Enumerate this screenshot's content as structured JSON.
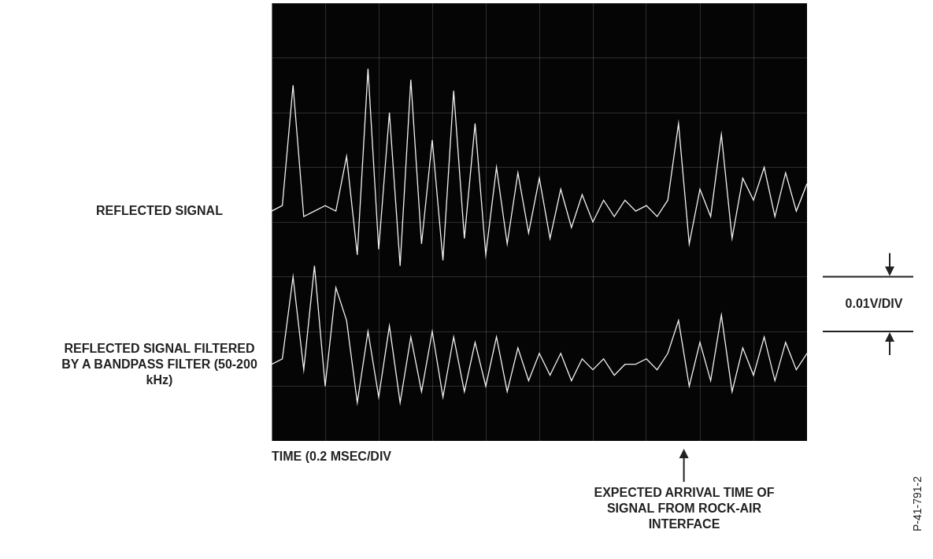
{
  "chart_data": {
    "type": "line",
    "x_label": "TIME (0.2 MSEC/DIV",
    "y_label": "0.01V/DIV",
    "x": [
      0,
      0.04,
      0.08,
      0.12,
      0.16,
      0.2,
      0.24,
      0.28,
      0.32,
      0.36,
      0.4,
      0.44,
      0.48,
      0.52,
      0.56,
      0.6,
      0.64,
      0.68,
      0.72,
      0.76,
      0.8,
      0.84,
      0.88,
      0.92,
      0.96,
      1.0,
      1.04,
      1.08,
      1.12,
      1.16,
      1.2,
      1.24,
      1.28,
      1.32,
      1.36,
      1.4,
      1.44,
      1.48,
      1.52,
      1.56,
      1.6,
      1.64,
      1.68,
      1.72,
      1.76,
      1.8,
      1.84,
      1.88,
      1.92,
      1.96,
      2.0
    ],
    "series": [
      {
        "name": "REFLECTED SIGNAL",
        "color": "#f2f2f2",
        "values": [
          0.002,
          0.003,
          0.025,
          0.001,
          0.002,
          0.003,
          0.002,
          0.012,
          -0.006,
          0.028,
          -0.005,
          0.02,
          -0.008,
          0.026,
          -0.004,
          0.015,
          -0.007,
          0.024,
          -0.003,
          0.018,
          -0.006,
          0.01,
          -0.004,
          0.009,
          -0.002,
          0.008,
          -0.003,
          0.006,
          -0.001,
          0.005,
          0.0,
          0.004,
          0.001,
          0.004,
          0.002,
          0.003,
          0.001,
          0.004,
          0.018,
          -0.004,
          0.006,
          0.001,
          0.016,
          -0.003,
          0.008,
          0.004,
          0.01,
          0.001,
          0.009,
          0.002,
          0.007
        ]
      },
      {
        "name": "REFLECTED SIGNAL FILTERED BY A BANDPASS FILTER (50-200 kHz)",
        "color": "#f2f2f2",
        "values": [
          -0.026,
          -0.025,
          -0.01,
          -0.027,
          -0.008,
          -0.03,
          -0.012,
          -0.018,
          -0.033,
          -0.02,
          -0.032,
          -0.019,
          -0.033,
          -0.021,
          -0.031,
          -0.02,
          -0.032,
          -0.021,
          -0.031,
          -0.022,
          -0.03,
          -0.021,
          -0.031,
          -0.023,
          -0.029,
          -0.024,
          -0.028,
          -0.024,
          -0.029,
          -0.025,
          -0.027,
          -0.025,
          -0.028,
          -0.026,
          -0.026,
          -0.025,
          -0.027,
          -0.024,
          -0.018,
          -0.03,
          -0.022,
          -0.029,
          -0.017,
          -0.031,
          -0.023,
          -0.028,
          -0.021,
          -0.029,
          -0.022,
          -0.027,
          -0.024
        ]
      }
    ],
    "xlim": [
      0,
      2
    ],
    "xticks": [
      0,
      0.2,
      0.4,
      0.6,
      0.8,
      1.0,
      1.2,
      1.4,
      1.6,
      1.8,
      2.0
    ],
    "ylim": [
      -0.04,
      0.04
    ],
    "yticks": [
      -0.04,
      -0.03,
      -0.02,
      -0.01,
      0,
      0.01,
      0.02,
      0.03,
      0.04
    ],
    "grid": true,
    "tick_labels": false,
    "annotations": [
      {
        "text": "EXPECTED ARRIVAL TIME OF SIGNAL FROM ROCK-AIR INTERFACE",
        "x": 1.54
      },
      {
        "text": "P-41-791-2"
      }
    ]
  }
}
